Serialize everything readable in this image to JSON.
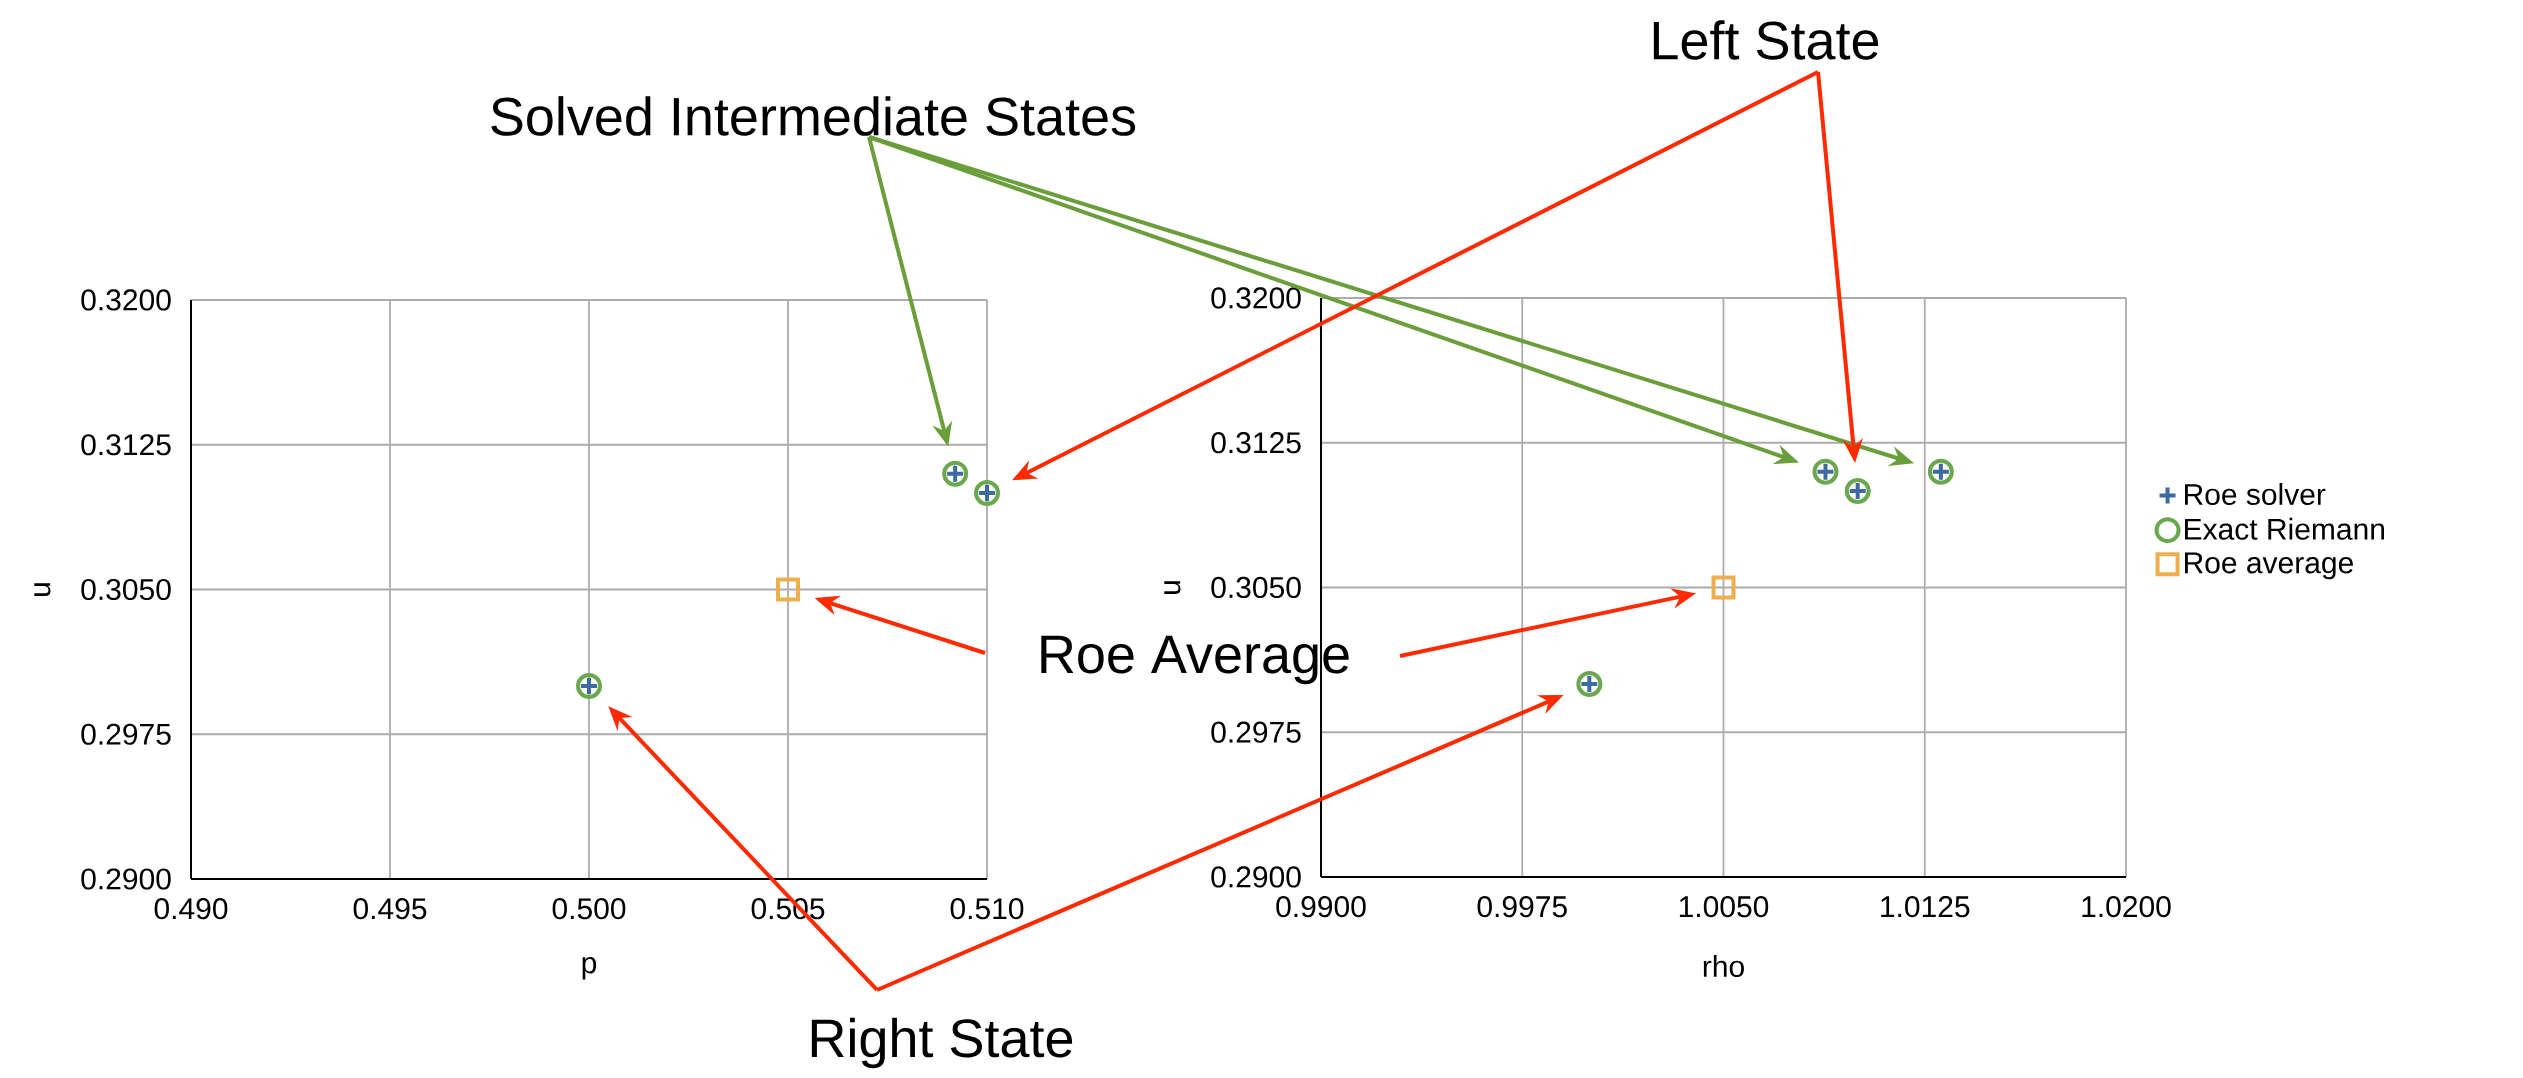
{
  "chart_data": [
    {
      "type": "scatter",
      "xlabel": "p",
      "ylabel": "u",
      "grid": true,
      "xlim": [
        0.49,
        0.51
      ],
      "ylim": [
        0.29,
        0.32
      ],
      "xticks": [
        {
          "value": 0.49,
          "label": "0.490"
        },
        {
          "value": 0.495,
          "label": "0.495"
        },
        {
          "value": 0.5,
          "label": "0.500"
        },
        {
          "value": 0.505,
          "label": "0.505"
        },
        {
          "value": 0.51,
          "label": "0.510"
        }
      ],
      "yticks": [
        {
          "value": 0.29,
          "label": "0.2900"
        },
        {
          "value": 0.2975,
          "label": "0.2975"
        },
        {
          "value": 0.305,
          "label": "0.3050"
        },
        {
          "value": 0.3125,
          "label": "0.3125"
        },
        {
          "value": 0.32,
          "label": "0.3200"
        }
      ],
      "series": [
        {
          "color": "#3d6aa3",
          "marker": "cross",
          "x": [
            0.5,
            0.5092,
            0.51
          ],
          "values": [
            0.3,
            0.311,
            0.31
          ]
        },
        {
          "color": "#6aa84f",
          "marker": "circle",
          "x": [
            0.5,
            0.5092,
            0.51
          ],
          "values": [
            0.3,
            0.311,
            0.31
          ]
        },
        {
          "color": "#f0ad4e",
          "marker": "square",
          "x": [
            0.505
          ],
          "values": [
            0.305
          ]
        }
      ],
      "annotations": [
        "Solved Intermediate States",
        "Left State",
        "Roe Average",
        "Right State"
      ]
    },
    {
      "type": "scatter",
      "xlabel": "rho",
      "ylabel": "u",
      "grid": true,
      "legend": "right",
      "xlim": [
        0.99,
        1.02
      ],
      "ylim": [
        0.29,
        0.32
      ],
      "xticks": [
        {
          "value": 0.99,
          "label": "0.9900"
        },
        {
          "value": 0.9975,
          "label": "0.9975"
        },
        {
          "value": 1.005,
          "label": "1.0050"
        },
        {
          "value": 1.0125,
          "label": "1.0125"
        },
        {
          "value": 1.02,
          "label": "1.0200"
        }
      ],
      "yticks": [
        {
          "value": 0.29,
          "label": "0.2900"
        },
        {
          "value": 0.2975,
          "label": "0.2975"
        },
        {
          "value": 0.305,
          "label": "0.3050"
        },
        {
          "value": 0.3125,
          "label": "0.3125"
        },
        {
          "value": 0.32,
          "label": "0.3200"
        }
      ],
      "series": [
        {
          "name": "Roe solver",
          "color": "#3d6aa3",
          "marker": "cross",
          "x": [
            1.0,
            1.0088,
            1.01,
            1.0131
          ],
          "values": [
            0.3,
            0.311,
            0.31,
            0.311
          ]
        },
        {
          "name": "Exact Riemann",
          "color": "#6aa84f",
          "marker": "circle",
          "x": [
            1.0,
            1.0088,
            1.01,
            1.0131
          ],
          "values": [
            0.3,
            0.311,
            0.31,
            0.311
          ]
        },
        {
          "name": "Roe average",
          "color": "#f0ad4e",
          "marker": "square",
          "x": [
            1.005
          ],
          "values": [
            0.305
          ]
        }
      ]
    }
  ]
}
